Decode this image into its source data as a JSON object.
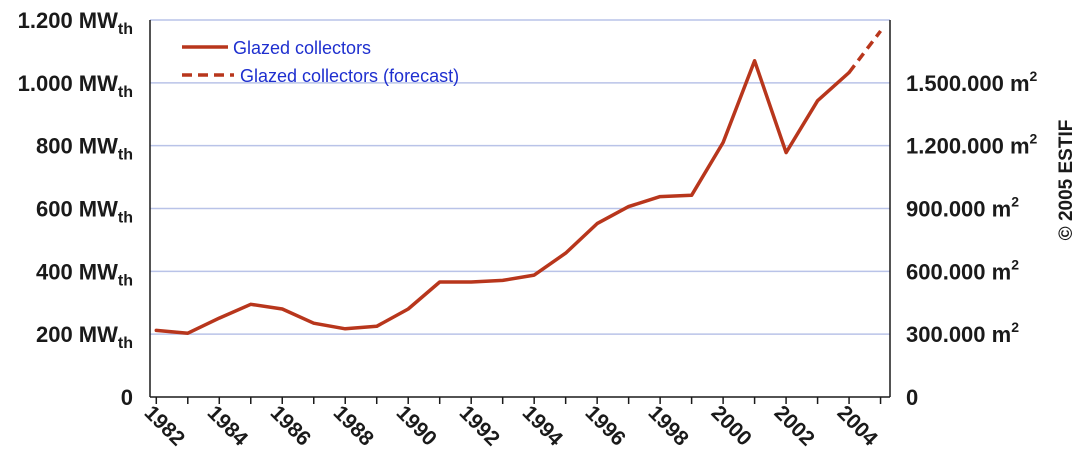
{
  "chart_data": {
    "type": "line",
    "xlabel": "",
    "ylabel": "",
    "x": [
      1982,
      1983,
      1984,
      1985,
      1986,
      1987,
      1988,
      1989,
      1990,
      1991,
      1992,
      1993,
      1994,
      1995,
      1996,
      1997,
      1998,
      1999,
      2000,
      2001,
      2002,
      2003,
      2004
    ],
    "series": [
      {
        "name": "Glazed collectors",
        "style": "solid",
        "values": [
          212,
          203,
          251,
          295,
          280,
          235,
          217,
          225,
          280,
          366,
          366,
          371,
          388,
          458,
          552,
          606,
          638,
          642,
          810,
          1070,
          778,
          943,
          1033
        ]
      },
      {
        "name": "Glazed collectors (forecast)",
        "style": "dashed",
        "x": [
          2004,
          2005
        ],
        "values": [
          1033,
          1165
        ]
      }
    ],
    "xlim": [
      1981.8,
      2005.3
    ],
    "ylim": [
      0,
      1200
    ],
    "x_ticks": [
      "1982",
      "1984",
      "1986",
      "1988",
      "1990",
      "1992",
      "1994",
      "1996",
      "1998",
      "2000",
      "2002",
      "2004"
    ],
    "y_left_ticks": [
      {
        "value": 0,
        "num": "0",
        "unit": ""
      },
      {
        "value": 200,
        "num": "200 MW",
        "unit": "th"
      },
      {
        "value": 400,
        "num": "400 MW",
        "unit": "th"
      },
      {
        "value": 600,
        "num": "600 MW",
        "unit": "th"
      },
      {
        "value": 800,
        "num": "800 MW",
        "unit": "th"
      },
      {
        "value": 1000,
        "num": "1.000 MW",
        "unit": "th"
      },
      {
        "value": 1200,
        "num": "1.200 MW",
        "unit": "th"
      }
    ],
    "y_right_ticks": [
      {
        "value": 0,
        "num": "0",
        "unit": ""
      },
      {
        "value": 200,
        "num": "300.000 m",
        "unit": "2"
      },
      {
        "value": 400,
        "num": "600.000 m",
        "unit": "2"
      },
      {
        "value": 600,
        "num": "900.000 m",
        "unit": "2"
      },
      {
        "value": 800,
        "num": "1.200.000 m",
        "unit": "2"
      },
      {
        "value": 1000,
        "num": "1.500.000 m",
        "unit": "2"
      }
    ],
    "grid": true,
    "legend_position": "top-left",
    "annotation": "© 2005 ESTIF"
  },
  "colors": {
    "line": "#b8361c",
    "grid": "#b9c3e8",
    "legend_text": "#1e2fcf",
    "axis_text": "#1a1a1a"
  }
}
